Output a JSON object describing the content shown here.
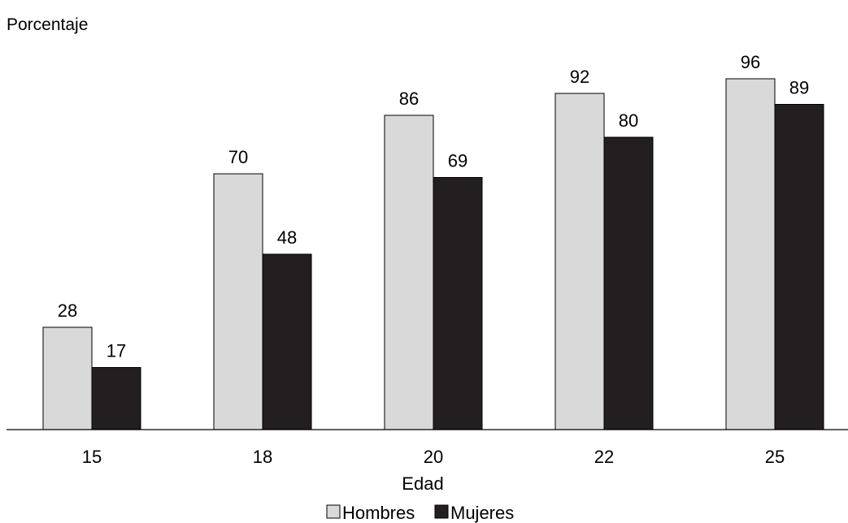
{
  "chart_data": {
    "type": "bar",
    "ylabel": "Porcentaje",
    "xlabel": "Edad",
    "categories": [
      "15",
      "18",
      "20",
      "22",
      "25"
    ],
    "series": [
      {
        "name": "Hombres",
        "values": [
          28,
          70,
          86,
          92,
          96
        ],
        "color": "#d9d9d9"
      },
      {
        "name": "Mujeres",
        "values": [
          17,
          48,
          69,
          80,
          89
        ],
        "color": "#231f20"
      }
    ],
    "ylim": [
      0,
      100
    ],
    "grid": false,
    "data_labels": true,
    "legend_position": "bottom"
  }
}
